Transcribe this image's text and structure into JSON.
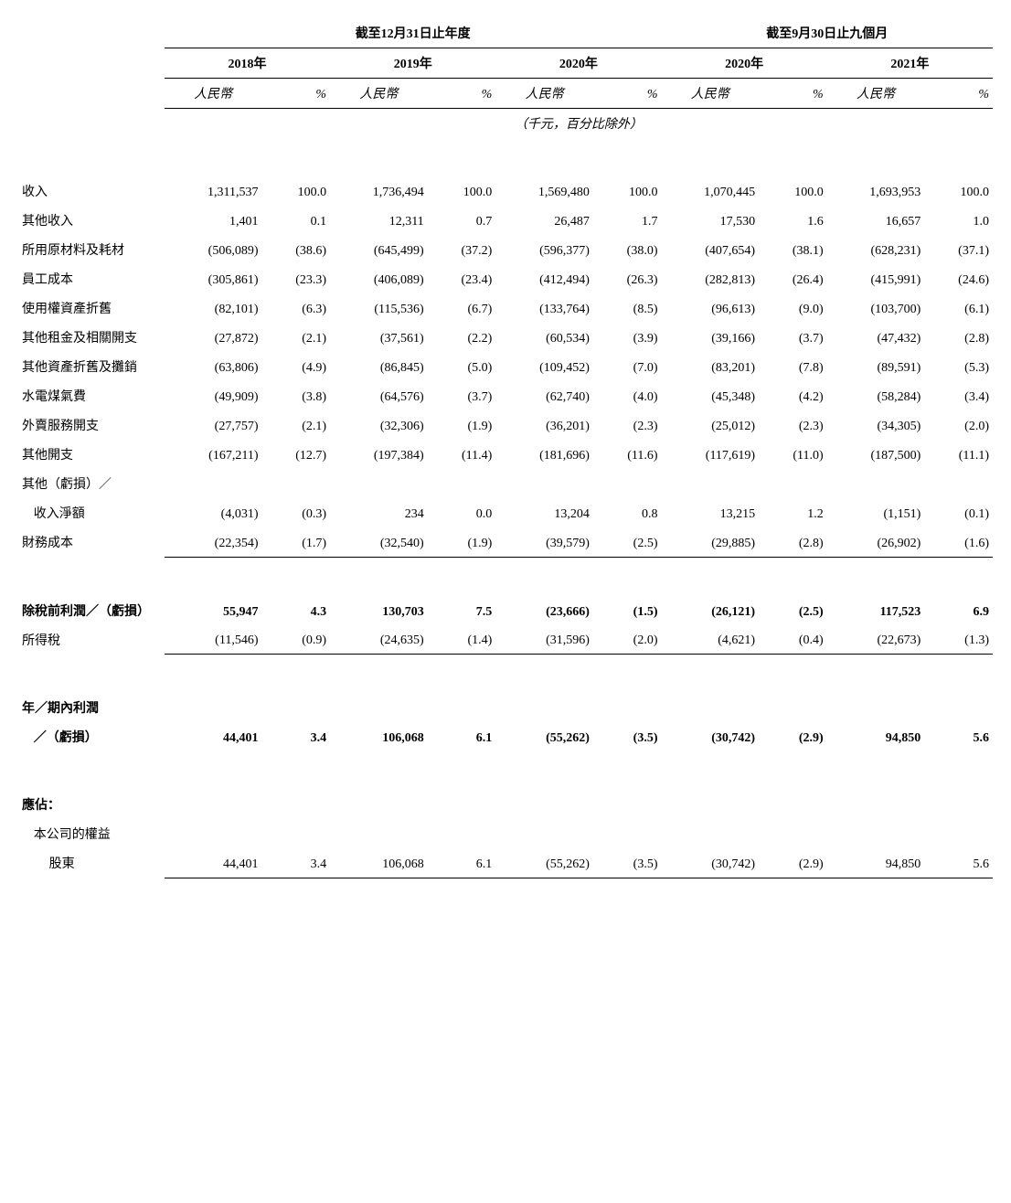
{
  "headers": {
    "period_year": "截至12月31日止年度",
    "period_nine": "截至9月30日止九個月",
    "years": [
      "2018年",
      "2019年",
      "2020年",
      "2020年",
      "2021年"
    ],
    "currency_label": "人民幣",
    "pct_label": "%",
    "unit_note": "（千元，百分比除外）"
  },
  "rows": [
    {
      "label": "收入",
      "indent": 0,
      "vals": [
        "1,311,537",
        "100.0",
        "1,736,494",
        "100.0",
        "1,569,480",
        "100.0",
        "1,070,445",
        "100.0",
        "1,693,953",
        "100.0"
      ]
    },
    {
      "label": "其他收入",
      "indent": 0,
      "vals": [
        "1,401",
        "0.1",
        "12,311",
        "0.7",
        "26,487",
        "1.7",
        "17,530",
        "1.6",
        "16,657",
        "1.0"
      ]
    },
    {
      "label": "所用原材料及耗材",
      "indent": 0,
      "vals": [
        "(506,089)",
        "(38.6)",
        "(645,499)",
        "(37.2)",
        "(596,377)",
        "(38.0)",
        "(407,654)",
        "(38.1)",
        "(628,231)",
        "(37.1)"
      ]
    },
    {
      "label": "員工成本",
      "indent": 0,
      "vals": [
        "(305,861)",
        "(23.3)",
        "(406,089)",
        "(23.4)",
        "(412,494)",
        "(26.3)",
        "(282,813)",
        "(26.4)",
        "(415,991)",
        "(24.6)"
      ]
    },
    {
      "label": "使用權資產折舊",
      "indent": 0,
      "vals": [
        "(82,101)",
        "(6.3)",
        "(115,536)",
        "(6.7)",
        "(133,764)",
        "(8.5)",
        "(96,613)",
        "(9.0)",
        "(103,700)",
        "(6.1)"
      ]
    },
    {
      "label": "其他租金及相關開支",
      "indent": 0,
      "vals": [
        "(27,872)",
        "(2.1)",
        "(37,561)",
        "(2.2)",
        "(60,534)",
        "(3.9)",
        "(39,166)",
        "(3.7)",
        "(47,432)",
        "(2.8)"
      ]
    },
    {
      "label": "其他資產折舊及攤銷",
      "indent": 0,
      "vals": [
        "(63,806)",
        "(4.9)",
        "(86,845)",
        "(5.0)",
        "(109,452)",
        "(7.0)",
        "(83,201)",
        "(7.8)",
        "(89,591)",
        "(5.3)"
      ]
    },
    {
      "label": "水電煤氣費",
      "indent": 0,
      "vals": [
        "(49,909)",
        "(3.8)",
        "(64,576)",
        "(3.7)",
        "(62,740)",
        "(4.0)",
        "(45,348)",
        "(4.2)",
        "(58,284)",
        "(3.4)"
      ]
    },
    {
      "label": "外賣服務開支",
      "indent": 0,
      "vals": [
        "(27,757)",
        "(2.1)",
        "(32,306)",
        "(1.9)",
        "(36,201)",
        "(2.3)",
        "(25,012)",
        "(2.3)",
        "(34,305)",
        "(2.0)"
      ]
    },
    {
      "label": "其他開支",
      "indent": 0,
      "vals": [
        "(167,211)",
        "(12.7)",
        "(197,384)",
        "(11.4)",
        "(181,696)",
        "(11.6)",
        "(117,619)",
        "(11.0)",
        "(187,500)",
        "(11.1)"
      ]
    },
    {
      "label": "其他（虧損）／",
      "indent": 0,
      "vals": []
    },
    {
      "label": "收入淨額",
      "indent": 1,
      "vals": [
        "(4,031)",
        "(0.3)",
        "234",
        "0.0",
        "13,204",
        "0.8",
        "13,215",
        "1.2",
        "(1,151)",
        "(0.1)"
      ]
    },
    {
      "label": "財務成本",
      "indent": 0,
      "vals": [
        "(22,354)",
        "(1.7)",
        "(32,540)",
        "(1.9)",
        "(39,579)",
        "(2.5)",
        "(29,885)",
        "(2.8)",
        "(26,902)",
        "(1.6)"
      ],
      "lineBelow": true
    },
    {
      "spacer": true,
      "large": true
    },
    {
      "label": "除稅前利潤／（虧損）",
      "indent": 0,
      "bold": true,
      "vals": [
        "55,947",
        "4.3",
        "130,703",
        "7.5",
        "(23,666)",
        "(1.5)",
        "(26,121)",
        "(2.5)",
        "117,523",
        "6.9"
      ]
    },
    {
      "label": "所得稅",
      "indent": 0,
      "vals": [
        "(11,546)",
        "(0.9)",
        "(24,635)",
        "(1.4)",
        "(31,596)",
        "(2.0)",
        "(4,621)",
        "(0.4)",
        "(22,673)",
        "(1.3)"
      ],
      "lineBelow": true
    },
    {
      "spacer": true,
      "large": true
    },
    {
      "label": "年／期內利潤",
      "indent": 0,
      "bold": true,
      "vals": []
    },
    {
      "label": "／（虧損）",
      "indent": 1,
      "bold": true,
      "vals": [
        "44,401",
        "3.4",
        "106,068",
        "6.1",
        "(55,262)",
        "(3.5)",
        "(30,742)",
        "(2.9)",
        "94,850",
        "5.6"
      ]
    },
    {
      "spacer": true,
      "large": true
    },
    {
      "label": "應佔：",
      "indent": 0,
      "bold": true,
      "vals": []
    },
    {
      "label": "本公司的權益",
      "indent": 1,
      "vals": []
    },
    {
      "label": "股東",
      "indent": 2,
      "vals": [
        "44,401",
        "3.4",
        "106,068",
        "6.1",
        "(55,262)",
        "(3.5)",
        "(30,742)",
        "(2.9)",
        "94,850",
        "5.6"
      ],
      "lineBelow": true
    }
  ]
}
